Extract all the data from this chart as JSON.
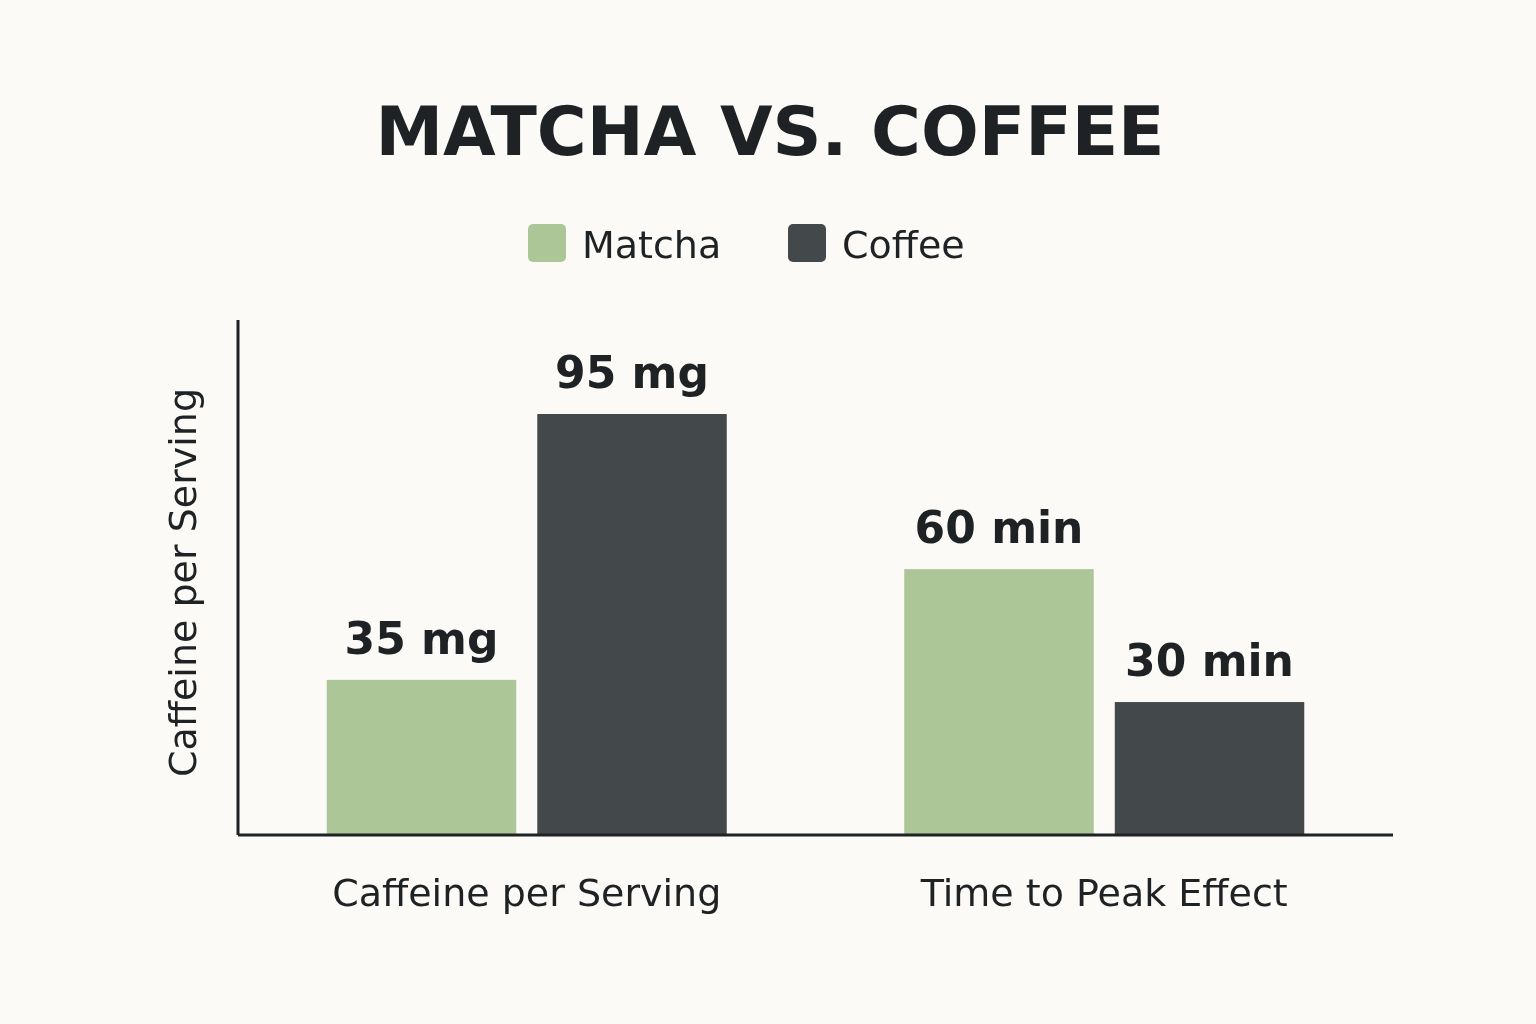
{
  "chart_data": {
    "type": "bar",
    "title": "MATCHA VS. COFFEE",
    "ylabel": "Caffeine per Serving",
    "categories": [
      "Caffeine per Serving",
      "Time to Peak Effect"
    ],
    "legend": "top",
    "series": [
      {
        "name": "Matcha",
        "color": "#adc698",
        "values": [
          35,
          60
        ],
        "value_labels": [
          "35 mg",
          "60 min"
        ]
      },
      {
        "name": "Coffee",
        "color": "#43484b",
        "values": [
          95,
          30
        ],
        "value_labels": [
          "95 mg",
          "30 min"
        ]
      }
    ]
  }
}
